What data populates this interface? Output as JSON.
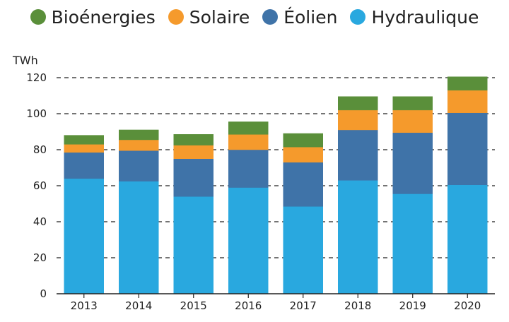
{
  "chart_data": {
    "type": "bar",
    "stacked": true,
    "categories": [
      "2013",
      "2014",
      "2015",
      "2016",
      "2017",
      "2018",
      "2019",
      "2020"
    ],
    "series": [
      {
        "name": "Hydraulique",
        "color": "#29a8df",
        "values": [
          64,
          62.5,
          54,
          59,
          48.5,
          63,
          55.5,
          60.5
        ]
      },
      {
        "name": "Éolien",
        "color": "#3f73a8",
        "values": [
          14.5,
          17,
          21,
          21,
          24.5,
          28,
          34,
          40
        ]
      },
      {
        "name": "Solaire",
        "color": "#f59a2c",
        "values": [
          4.5,
          6,
          7.5,
          8.5,
          8.5,
          11,
          12.5,
          12.5
        ]
      },
      {
        "name": "Bioénergies",
        "color": "#5a8f3a",
        "values": [
          5,
          5.5,
          6,
          7,
          7.5,
          7.5,
          7.5,
          7.5
        ]
      }
    ],
    "legend_order": [
      "Bioénergies",
      "Solaire",
      "Éolien",
      "Hydraulique"
    ],
    "ylabel": "TWh",
    "ylim": [
      0,
      120
    ],
    "yticks": [
      "0",
      "20",
      "40",
      "60",
      "80",
      "100",
      "120"
    ],
    "grid": "dashed horizontal",
    "legend_position": "top"
  }
}
